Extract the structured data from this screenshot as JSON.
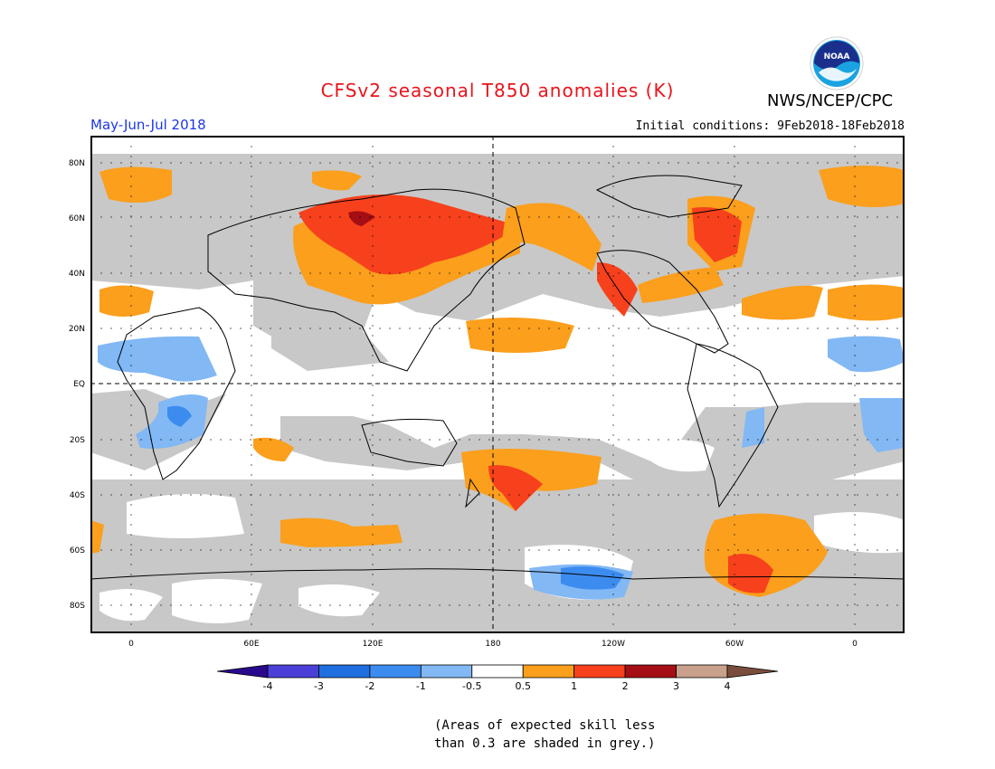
{
  "title": "CFSv2 seasonal T850 anomalies (K)",
  "season": "May-Jun-Jul 2018",
  "org": "NWS/NCEP/CPC",
  "logo_text": "NOAA",
  "initial_conditions": "Initial conditions: 9Feb2018-18Feb2018",
  "lat_labels": [
    "80N",
    "60N",
    "40N",
    "20N",
    "EQ",
    "20S",
    "40S",
    "60S",
    "80S"
  ],
  "lon_labels": [
    "0",
    "60E",
    "120E",
    "180",
    "120W",
    "60W",
    "0"
  ],
  "colorbar": {
    "ticks": [
      "-4",
      "-3",
      "-2",
      "-1",
      "-0.5",
      "0.5",
      "1",
      "2",
      "3",
      "4"
    ],
    "colors": [
      "#2a0a8c",
      "#4a3fd6",
      "#1f6fe0",
      "#3c8cf0",
      "#82b8f4",
      "#ffffff",
      "#fb9f1c",
      "#f7401c",
      "#a40e14",
      "#c8a08c",
      "#7a4e3c"
    ]
  },
  "note_line1": "(Areas of expected skill less",
  "note_line2": "than 0.3 are shaded in grey.)",
  "colors": {
    "grey": "#c8c8c8",
    "title": "#e8141c",
    "season": "#1c36e8"
  }
}
